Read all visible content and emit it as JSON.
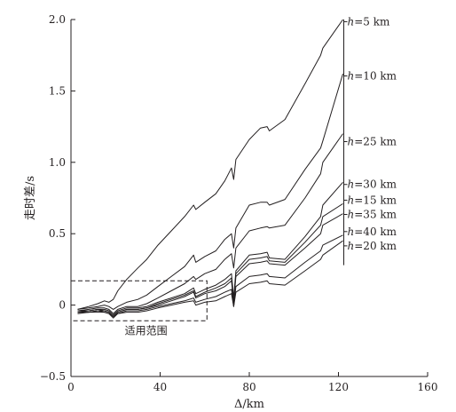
{
  "chart_data": {
    "type": "line",
    "xlabel": "Δ/km",
    "ylabel": "走时差/s",
    "xlim": [
      0,
      160
    ],
    "ylim": [
      -0.5,
      2.0
    ],
    "xticks": [
      "0",
      "40",
      "80",
      "120",
      "160"
    ],
    "yticks": [
      "−0.5",
      "0",
      "0.5",
      "1.0",
      "1.5",
      "2.0"
    ],
    "x": [
      3,
      8,
      12,
      15,
      17,
      19,
      21,
      25,
      30,
      34,
      39,
      45,
      51,
      55,
      56,
      60,
      65,
      69,
      72,
      73,
      74,
      80,
      85,
      88,
      89,
      96,
      105,
      112,
      113,
      122
    ],
    "series": [
      {
        "name": "h=5 km",
        "label_var": "h",
        "label_rest": "=5 km",
        "values": [
          -0.03,
          -0.01,
          0.01,
          0.03,
          0.02,
          0.04,
          0.1,
          0.18,
          0.26,
          0.32,
          0.42,
          0.52,
          0.62,
          0.7,
          0.67,
          0.72,
          0.78,
          0.87,
          0.96,
          0.88,
          1.02,
          1.16,
          1.24,
          1.25,
          1.22,
          1.3,
          1.55,
          1.75,
          1.8,
          2.0
        ]
      },
      {
        "name": "h=10 km",
        "label_var": "h",
        "label_rest": "=10 km",
        "values": [
          -0.03,
          -0.02,
          -0.01,
          0.0,
          -0.01,
          -0.03,
          -0.01,
          0.02,
          0.04,
          0.07,
          0.13,
          0.2,
          0.27,
          0.35,
          0.3,
          0.34,
          0.38,
          0.46,
          0.5,
          0.4,
          0.54,
          0.7,
          0.72,
          0.72,
          0.7,
          0.74,
          0.95,
          1.1,
          1.15,
          1.62
        ]
      },
      {
        "name": "h=25 km",
        "label_var": "h",
        "label_rest": "=25 km",
        "values": [
          -0.04,
          -0.03,
          -0.02,
          -0.02,
          -0.03,
          -0.06,
          -0.03,
          -0.01,
          -0.01,
          0.01,
          0.05,
          0.1,
          0.15,
          0.2,
          0.18,
          0.22,
          0.25,
          0.32,
          0.36,
          0.26,
          0.4,
          0.52,
          0.54,
          0.55,
          0.54,
          0.56,
          0.75,
          0.92,
          1.0,
          1.2
        ]
      },
      {
        "name": "h=30 km",
        "label_var": "h",
        "label_rest": "=30 km",
        "values": [
          -0.04,
          -0.04,
          -0.03,
          -0.03,
          -0.04,
          -0.07,
          -0.04,
          -0.02,
          -0.02,
          -0.01,
          0.02,
          0.05,
          0.08,
          0.12,
          0.08,
          0.11,
          0.14,
          0.18,
          0.22,
          0.05,
          0.24,
          0.35,
          0.36,
          0.37,
          0.33,
          0.32,
          0.48,
          0.62,
          0.7,
          0.86
        ]
      },
      {
        "name": "h=15 km",
        "label_var": "h",
        "label_rest": "=15 km",
        "values": [
          -0.05,
          -0.04,
          -0.03,
          -0.04,
          -0.05,
          -0.08,
          -0.05,
          -0.03,
          -0.03,
          -0.02,
          0.01,
          0.04,
          0.07,
          0.1,
          0.06,
          0.09,
          0.12,
          0.15,
          0.19,
          0.03,
          0.22,
          0.32,
          0.33,
          0.34,
          0.31,
          0.3,
          0.44,
          0.56,
          0.62,
          0.71
        ]
      },
      {
        "name": "h=35 km",
        "label_var": "h",
        "label_rest": "=35 km",
        "values": [
          -0.05,
          -0.05,
          -0.04,
          -0.04,
          -0.05,
          -0.08,
          -0.05,
          -0.03,
          -0.03,
          -0.02,
          0.0,
          0.03,
          0.06,
          0.09,
          0.05,
          0.08,
          0.1,
          0.13,
          0.17,
          0.02,
          0.2,
          0.29,
          0.3,
          0.31,
          0.29,
          0.28,
          0.4,
          0.5,
          0.56,
          0.64
        ]
      },
      {
        "name": "h=40 km",
        "label_var": "h",
        "label_rest": "=40 km",
        "values": [
          -0.05,
          -0.05,
          -0.04,
          -0.05,
          -0.06,
          -0.08,
          -0.06,
          -0.04,
          -0.04,
          -0.03,
          -0.01,
          0.01,
          0.03,
          0.05,
          0.02,
          0.04,
          0.06,
          0.09,
          0.11,
          -0.01,
          0.13,
          0.2,
          0.21,
          0.22,
          0.2,
          0.19,
          0.3,
          0.38,
          0.42,
          0.49
        ]
      },
      {
        "name": "h=20 km",
        "label_var": "h",
        "label_rest": "=20 km",
        "values": [
          -0.06,
          -0.05,
          -0.05,
          -0.05,
          -0.06,
          -0.09,
          -0.06,
          -0.05,
          -0.05,
          -0.04,
          -0.02,
          0.0,
          0.02,
          0.03,
          0.0,
          0.02,
          0.03,
          0.06,
          0.08,
          -0.01,
          0.09,
          0.15,
          0.16,
          0.17,
          0.15,
          0.14,
          0.24,
          0.32,
          0.35,
          0.45
        ]
      }
    ],
    "label_y": [
      1.96,
      1.58,
      1.12,
      0.82,
      0.71,
      0.61,
      0.49,
      0.39
    ],
    "bracket_y": [
      2.0,
      0.28
    ],
    "annotation": {
      "text": "适用范围",
      "x_range": [
        0,
        61
      ],
      "y_range": [
        -0.11,
        0.17
      ]
    },
    "grid": false,
    "legend": "inline-right"
  }
}
